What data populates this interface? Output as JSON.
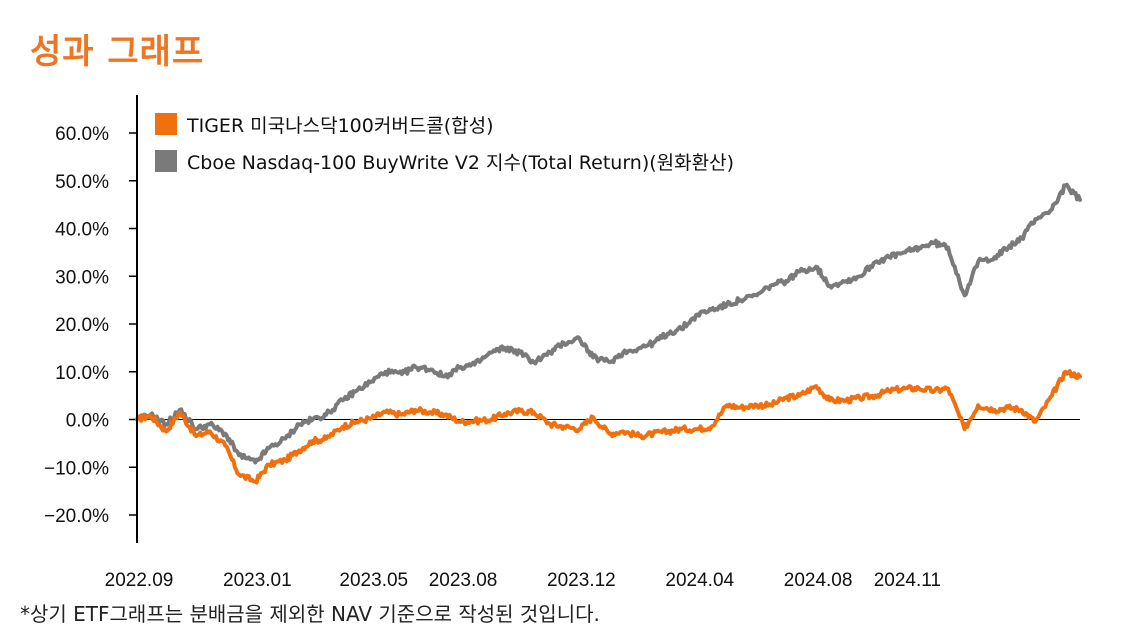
{
  "page": {
    "title": "성과 그래프",
    "footnote": "*상기 ETF그래프는 분배금을 제외한 NAV 기준으로 작성된 것입니다."
  },
  "chart_data": {
    "type": "line",
    "title": "성과 그래프",
    "xlabel": "",
    "ylabel": "",
    "ylim": [
      -0.25,
      0.6
    ],
    "yticks": [
      -0.2,
      -0.1,
      0.0,
      0.1,
      0.2,
      0.3,
      0.4,
      0.5,
      0.6
    ],
    "ytick_labels": [
      "-20.0%",
      "-10.0%",
      "0.0%",
      "10.0%",
      "20.0%",
      "30.0%",
      "40.0%",
      "50.0%",
      "60.0%"
    ],
    "xlim": [
      "2022-09-01",
      "2025-04-30"
    ],
    "xticks": [
      "2022-09-01",
      "2023-01-01",
      "2023-05-01",
      "2023-08-01",
      "2023-12-01",
      "2024-04-01",
      "2024-08-01",
      "2024-11-01"
    ],
    "xtick_labels": [
      "2022.09",
      "2023.01",
      "2023.05",
      "2023.08",
      "2023.12",
      "2024.04",
      "2024.08",
      "2024.11"
    ],
    "grid": false,
    "zero_line": true,
    "legend": "top-left",
    "series": [
      {
        "name": "TIGER 미국나스닥100커버드콜(합성)",
        "color": "#F07010",
        "x": [
          "2022-09-01",
          "2022-09-15",
          "2022-10-01",
          "2022-10-15",
          "2022-11-01",
          "2022-11-15",
          "2022-12-01",
          "2022-12-15",
          "2023-01-01",
          "2023-01-15",
          "2023-02-01",
          "2023-02-15",
          "2023-03-01",
          "2023-03-15",
          "2023-04-01",
          "2023-04-15",
          "2023-05-01",
          "2023-05-15",
          "2023-06-01",
          "2023-06-15",
          "2023-07-01",
          "2023-07-15",
          "2023-08-01",
          "2023-08-15",
          "2023-09-01",
          "2023-09-15",
          "2023-10-01",
          "2023-10-15",
          "2023-11-01",
          "2023-11-15",
          "2023-12-01",
          "2023-12-15",
          "2024-01-01",
          "2024-01-15",
          "2024-02-01",
          "2024-02-15",
          "2024-03-01",
          "2024-03-15",
          "2024-04-01",
          "2024-04-15",
          "2024-05-01",
          "2024-05-15",
          "2024-06-01",
          "2024-06-15",
          "2024-07-01",
          "2024-07-15",
          "2024-08-01",
          "2024-08-15",
          "2024-09-01",
          "2024-09-15",
          "2024-10-01",
          "2024-10-15",
          "2024-11-01",
          "2024-11-15",
          "2024-12-01",
          "2024-12-15",
          "2025-01-01",
          "2025-01-15",
          "2025-02-01",
          "2025-02-15",
          "2025-03-01",
          "2025-03-15",
          "2025-04-01",
          "2025-04-15",
          "2025-04-30"
        ],
        "values": [
          0.0,
          0.008,
          -0.025,
          0.015,
          -0.035,
          -0.025,
          -0.055,
          -0.115,
          -0.13,
          -0.095,
          -0.085,
          -0.065,
          -0.045,
          -0.04,
          -0.015,
          -0.005,
          0.003,
          0.015,
          0.01,
          0.02,
          0.015,
          0.01,
          -0.005,
          -0.003,
          0.0,
          0.012,
          0.018,
          0.015,
          -0.01,
          -0.015,
          -0.02,
          0.005,
          -0.03,
          -0.025,
          -0.035,
          -0.03,
          -0.025,
          -0.02,
          -0.02,
          -0.015,
          0.03,
          0.025,
          0.03,
          0.03,
          0.045,
          0.05,
          0.07,
          0.04,
          0.04,
          0.045,
          0.05,
          0.06,
          0.065,
          0.065,
          0.06,
          0.065,
          -0.02,
          0.03,
          0.02,
          0.025,
          0.02,
          -0.005,
          0.05,
          0.1,
          0.09
        ]
      },
      {
        "name": "Cboe Nasdaq-100 BuyWrite V2 지수(Total Return)(원화환산)",
        "color": "#7A7A7A",
        "x": [
          "2022-09-01",
          "2022-09-15",
          "2022-10-01",
          "2022-10-15",
          "2022-11-01",
          "2022-11-15",
          "2022-12-01",
          "2022-12-15",
          "2023-01-01",
          "2023-01-15",
          "2023-02-01",
          "2023-02-15",
          "2023-03-01",
          "2023-03-15",
          "2023-04-01",
          "2023-04-15",
          "2023-05-01",
          "2023-05-15",
          "2023-06-01",
          "2023-06-15",
          "2023-07-01",
          "2023-07-15",
          "2023-08-01",
          "2023-08-15",
          "2023-09-01",
          "2023-09-15",
          "2023-10-01",
          "2023-10-15",
          "2023-11-01",
          "2023-11-15",
          "2023-12-01",
          "2023-12-15",
          "2024-01-01",
          "2024-01-15",
          "2024-02-01",
          "2024-02-15",
          "2024-03-01",
          "2024-03-15",
          "2024-04-01",
          "2024-04-15",
          "2024-05-01",
          "2024-05-15",
          "2024-06-01",
          "2024-06-15",
          "2024-07-01",
          "2024-07-15",
          "2024-08-01",
          "2024-08-15",
          "2024-09-01",
          "2024-09-15",
          "2024-10-01",
          "2024-10-15",
          "2024-11-01",
          "2024-11-15",
          "2024-12-01",
          "2024-12-15",
          "2025-01-01",
          "2025-01-15",
          "2025-02-01",
          "2025-02-15",
          "2025-03-01",
          "2025-03-15",
          "2025-04-01",
          "2025-04-15",
          "2025-04-30"
        ],
        "values": [
          0.0,
          0.01,
          -0.01,
          0.02,
          -0.02,
          -0.01,
          -0.03,
          -0.075,
          -0.09,
          -0.06,
          -0.04,
          -0.01,
          0.0,
          0.01,
          0.04,
          0.06,
          0.08,
          0.1,
          0.095,
          0.11,
          0.105,
          0.09,
          0.11,
          0.115,
          0.14,
          0.15,
          0.14,
          0.12,
          0.14,
          0.16,
          0.17,
          0.13,
          0.12,
          0.14,
          0.15,
          0.16,
          0.18,
          0.19,
          0.22,
          0.23,
          0.24,
          0.25,
          0.26,
          0.28,
          0.29,
          0.31,
          0.32,
          0.28,
          0.29,
          0.3,
          0.33,
          0.34,
          0.35,
          0.36,
          0.37,
          0.36,
          0.26,
          0.33,
          0.34,
          0.36,
          0.38,
          0.42,
          0.44,
          0.49,
          0.46
        ]
      }
    ]
  }
}
